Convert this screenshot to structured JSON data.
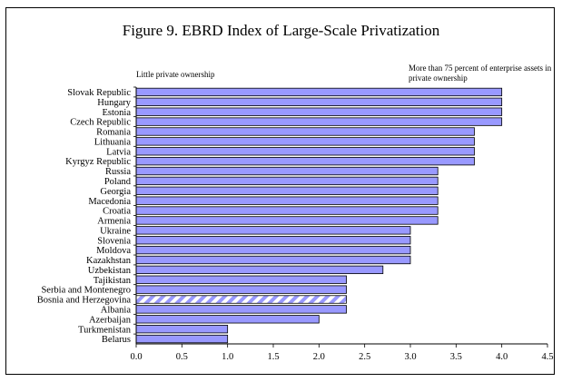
{
  "chart_data": {
    "type": "bar",
    "orientation": "horizontal",
    "title": "Figure 9. EBRD Index of Large-Scale Privatization",
    "annotations": {
      "left": "Little private ownership",
      "right": "More than 75 percent of enterprise assets in private ownership"
    },
    "categories": [
      "Slovak Republic",
      "Hungary",
      "Estonia",
      "Czech Republic",
      "Romania",
      "Lithuania",
      "Latvia",
      "Kyrgyz Republic",
      "Russia",
      "Poland",
      "Georgia",
      "Macedonia",
      "Croatia",
      "Armenia",
      "Ukraine",
      "Slovenia",
      "Moldova",
      "Kazakhstan",
      "Uzbekistan",
      "Tajikistan",
      "Serbia and Montenegro",
      "Bosnia and Herzegovina",
      "Albania",
      "Azerbaijan",
      "Turkmenistan",
      "Belarus"
    ],
    "values": [
      4.0,
      4.0,
      4.0,
      4.0,
      3.7,
      3.7,
      3.7,
      3.7,
      3.3,
      3.3,
      3.3,
      3.3,
      3.3,
      3.3,
      3.0,
      3.0,
      3.0,
      3.0,
      2.7,
      2.3,
      2.3,
      2.3,
      2.3,
      2.0,
      1.0,
      1.0
    ],
    "hatched": [
      "Bosnia and Herzegovina"
    ],
    "xlim": [
      0,
      4.5
    ],
    "xticks": [
      "0.0",
      "0.5",
      "1.0",
      "1.5",
      "2.0",
      "2.5",
      "3.0",
      "3.5",
      "4.0",
      "4.5"
    ],
    "xtick_values": [
      0,
      0.5,
      1.0,
      1.5,
      2.0,
      2.5,
      3.0,
      3.5,
      4.0,
      4.5
    ],
    "grid": false,
    "colors": {
      "bar": "#9999ff",
      "hatch": "#ffffff",
      "outline": "#000000"
    }
  }
}
